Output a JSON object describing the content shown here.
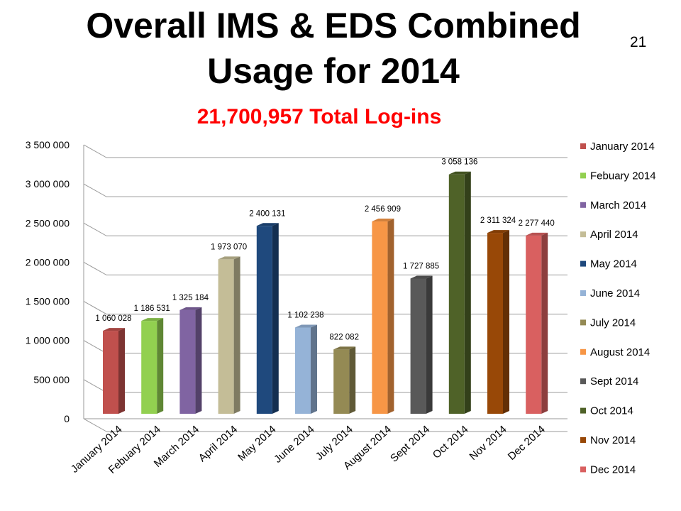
{
  "slide": {
    "title_line1": "Overall IMS & EDS Combined",
    "title_line2": "Usage for 2014",
    "page_number": "21"
  },
  "chart_data": {
    "type": "bar",
    "title": "21,700,957 Total Log-ins",
    "categories": [
      "January 2014",
      "Febuary 2014",
      "March 2014",
      "April 2014",
      "May 2014",
      "June 2014",
      "July 2014",
      "August 2014",
      "Sept 2014",
      "Oct 2014",
      "Nov 2014",
      "Dec 2014"
    ],
    "values": [
      1060028,
      1186531,
      1325184,
      1973070,
      2400131,
      1102238,
      822082,
      2456909,
      1727885,
      3058136,
      2311324,
      2277440
    ],
    "data_labels": [
      "1 060 028",
      "1 186 531",
      "1 325 184",
      "1 973 070",
      "2 400 131",
      "1 102 238",
      "822 082",
      "2 456 909",
      "1 727 885",
      "3 058 136",
      "2 311 324",
      "2 277 440"
    ],
    "colors": [
      "#c0504d",
      "#92d050",
      "#8064a2",
      "#c4bd97",
      "#1f497d",
      "#95b3d7",
      "#948a54",
      "#f79646",
      "#595959",
      "#4f6228",
      "#984807",
      "#d96060"
    ],
    "ylim": [
      0,
      3500000
    ],
    "y_ticks": [
      0,
      500000,
      1000000,
      1500000,
      2000000,
      2500000,
      3000000,
      3500000
    ],
    "y_tick_labels": [
      "0",
      "500 000",
      "1 000 000",
      "1 500 000",
      "2 000 000",
      "2 500 000",
      "3 000 000",
      "3 500 000"
    ],
    "grid": true,
    "legend_position": "right",
    "xlabel": "",
    "ylabel": ""
  }
}
